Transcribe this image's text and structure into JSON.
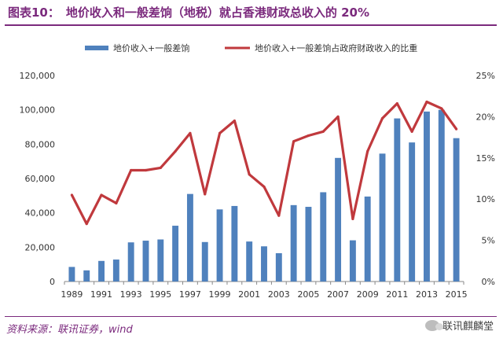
{
  "header": {
    "figure_label": "图表10：",
    "title": "地价收入和一般差饷（地税）就占香港财政总收入的 20%"
  },
  "footer": {
    "source": "资料来源：联讯证券，wind",
    "watermark": "联讯麒麟堂"
  },
  "colors": {
    "bar": "#4f81bd",
    "line": "#c0393d",
    "title": "#7b2a7d"
  },
  "chart_data": {
    "type": "bar+line",
    "categories": [
      "1989",
      "1990",
      "1991",
      "1992",
      "1993",
      "1994",
      "1995",
      "1996",
      "1997",
      "1998",
      "1999",
      "2000",
      "2001",
      "2002",
      "2003",
      "2004",
      "2005",
      "2006",
      "2007",
      "2008",
      "2009",
      "2010",
      "2011",
      "2012",
      "2013",
      "2014",
      "2015"
    ],
    "x_tick_labels": [
      "1989",
      "1991",
      "1993",
      "1995",
      "1997",
      "1999",
      "2001",
      "2003",
      "2005",
      "2007",
      "2009",
      "2011",
      "2013",
      "2015"
    ],
    "series": [
      {
        "name": "地价收入+一般差饷",
        "type": "bar",
        "axis": "left",
        "values": [
          8500,
          6500,
          12000,
          12800,
          22800,
          23800,
          24500,
          32500,
          51000,
          23000,
          42000,
          44000,
          23300,
          20500,
          16500,
          44500,
          43500,
          52000,
          72000,
          24000,
          49500,
          74500,
          95000,
          81000,
          99000,
          100000,
          83500
        ]
      },
      {
        "name": "地价收入+一般差饷占政府财政收入的比重",
        "type": "line",
        "axis": "right",
        "values": [
          10.5,
          7.0,
          10.5,
          9.5,
          13.5,
          13.5,
          13.8,
          15.8,
          18.0,
          10.6,
          18.0,
          19.5,
          13.0,
          11.5,
          8.0,
          17.0,
          17.7,
          18.2,
          20.0,
          7.6,
          15.8,
          19.8,
          21.6,
          18.2,
          21.8,
          21.0,
          18.5
        ]
      }
    ],
    "y_left": {
      "ylim": [
        0,
        120000
      ],
      "ticks": [
        "0",
        "20,000",
        "40,000",
        "60,000",
        "80,000",
        "100,000",
        "120,000"
      ]
    },
    "y_right": {
      "ylim": [
        0,
        25
      ],
      "ticks": [
        "0%",
        "5%",
        "10%",
        "15%",
        "20%",
        "25%"
      ]
    },
    "legend_position": "top",
    "grid": false
  }
}
